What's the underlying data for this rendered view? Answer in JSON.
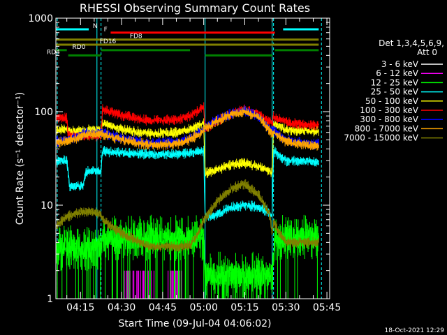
{
  "chart_data": {
    "type": "line",
    "title": "RHESSI Observing Summary Count Rates",
    "xlabel": "Start Time (09-Jul-04 04:06:02)",
    "ylabel": "Count Rate (s⁻¹ detector⁻¹)",
    "yscale": "log",
    "ylim": [
      1,
      1000
    ],
    "xlim_minutes": [
      6,
      106
    ],
    "y_ticks": [
      {
        "value": 1,
        "label": "1"
      },
      {
        "value": 10,
        "label": "10"
      },
      {
        "value": 100,
        "label": "100"
      },
      {
        "value": 1000,
        "label": "1000"
      }
    ],
    "x_ticks": [
      {
        "minute": 15,
        "label": "04:15"
      },
      {
        "minute": 30,
        "label": "04:30"
      },
      {
        "minute": 45,
        "label": "04:45"
      },
      {
        "minute": 60,
        "label": "05:00"
      },
      {
        "minute": 75,
        "label": "05:15"
      },
      {
        "minute": 90,
        "label": "05:30"
      },
      {
        "minute": 105,
        "label": "05:45"
      }
    ],
    "legend": {
      "title_lines": [
        "Det 1,3,4,5,6,9,",
        "Att 0"
      ],
      "placement": "right"
    },
    "series": [
      {
        "name": "3 - 6 keV",
        "color": "#ffffff",
        "visible": false,
        "points": []
      },
      {
        "name": "6 - 12 keV",
        "color": "#ff00ff",
        "style": "spikes",
        "segments": [
          [
            31,
            42
          ],
          [
            47,
            52
          ]
        ],
        "values": [
          1,
          2
        ]
      },
      {
        "name": "12 - 25 keV",
        "color": "#00ff00",
        "style": "noisy",
        "points": [
          [
            6,
            3.5
          ],
          [
            10,
            3.5
          ],
          [
            19,
            3.5
          ],
          [
            22.5,
            3.5
          ],
          [
            23,
            4.5
          ],
          [
            40,
            4.5
          ],
          [
            55,
            4.5
          ],
          [
            60,
            4.5
          ],
          [
            60.5,
            1.8
          ],
          [
            70,
            1.8
          ],
          [
            80,
            1.8
          ],
          [
            85,
            1.8
          ],
          [
            86,
            4.5
          ],
          [
            102,
            4.5
          ]
        ]
      },
      {
        "name": "25 - 50 keV",
        "color": "#00ffff",
        "points": [
          [
            6,
            30
          ],
          [
            10,
            30
          ],
          [
            11,
            16
          ],
          [
            16,
            16
          ],
          [
            17,
            23
          ],
          [
            22.5,
            23
          ],
          [
            23,
            38
          ],
          [
            30,
            36
          ],
          [
            40,
            35
          ],
          [
            50,
            35
          ],
          [
            55,
            36
          ],
          [
            60,
            38
          ],
          [
            60.5,
            7.5
          ],
          [
            65,
            8
          ],
          [
            70,
            9.5
          ],
          [
            75,
            10
          ],
          [
            80,
            9.5
          ],
          [
            84,
            8.5
          ],
          [
            85,
            7.5
          ],
          [
            85.5,
            38
          ],
          [
            90,
            30
          ],
          [
            100,
            29
          ],
          [
            102,
            29
          ]
        ]
      },
      {
        "name": "50 - 100 keV",
        "color": "#ffff00",
        "points": [
          [
            6,
            64
          ],
          [
            10,
            65
          ],
          [
            11,
            62
          ],
          [
            16,
            62
          ],
          [
            17,
            64
          ],
          [
            22.5,
            64
          ],
          [
            23,
            75
          ],
          [
            30,
            65
          ],
          [
            40,
            58
          ],
          [
            50,
            60
          ],
          [
            55,
            65
          ],
          [
            60,
            75
          ],
          [
            60.5,
            22
          ],
          [
            65,
            24
          ],
          [
            70,
            27
          ],
          [
            75,
            28
          ],
          [
            80,
            26
          ],
          [
            84,
            23
          ],
          [
            85,
            22
          ],
          [
            85.5,
            75
          ],
          [
            90,
            64
          ],
          [
            100,
            62
          ],
          [
            102,
            62
          ]
        ]
      },
      {
        "name": "100 - 300 keV",
        "color": "#ff0000",
        "points": [
          [
            6,
            85
          ],
          [
            8,
            87
          ],
          [
            10,
            85
          ],
          [
            10.5,
            55
          ],
          [
            16,
            55
          ],
          [
            22.5,
            55
          ],
          [
            23,
            105
          ],
          [
            30,
            92
          ],
          [
            40,
            80
          ],
          [
            50,
            82
          ],
          [
            55,
            90
          ],
          [
            60,
            112
          ],
          [
            60.5,
            65
          ],
          [
            65,
            80
          ],
          [
            70,
            95
          ],
          [
            75,
            105
          ],
          [
            80,
            95
          ],
          [
            85,
            75
          ],
          [
            85.5,
            88
          ],
          [
            88,
            82
          ],
          [
            92,
            75
          ],
          [
            100,
            72
          ],
          [
            102,
            72
          ]
        ]
      },
      {
        "name": "300 - 800 keV",
        "color": "#0000ff",
        "points": [
          [
            6,
            48
          ],
          [
            10,
            50
          ],
          [
            10.5,
            50
          ],
          [
            16,
            58
          ],
          [
            22.5,
            60
          ],
          [
            23,
            60
          ],
          [
            30,
            52
          ],
          [
            40,
            46
          ],
          [
            50,
            47
          ],
          [
            55,
            52
          ],
          [
            60,
            65
          ],
          [
            60.5,
            70
          ],
          [
            65,
            82
          ],
          [
            70,
            95
          ],
          [
            75,
            102
          ],
          [
            80,
            90
          ],
          [
            85,
            60
          ],
          [
            85.5,
            62
          ],
          [
            90,
            50
          ],
          [
            100,
            45
          ],
          [
            102,
            45
          ]
        ]
      },
      {
        "name": "800 - 7000 keV",
        "color": "#ffa500",
        "points": [
          [
            6,
            47
          ],
          [
            10,
            48
          ],
          [
            10.5,
            48
          ],
          [
            16,
            56
          ],
          [
            22.5,
            58
          ],
          [
            23,
            57
          ],
          [
            30,
            50
          ],
          [
            40,
            44
          ],
          [
            50,
            45
          ],
          [
            55,
            50
          ],
          [
            60,
            62
          ],
          [
            60.5,
            66
          ],
          [
            65,
            80
          ],
          [
            70,
            93
          ],
          [
            75,
            100
          ],
          [
            80,
            88
          ],
          [
            85,
            58
          ],
          [
            85.5,
            60
          ],
          [
            90,
            48
          ],
          [
            100,
            43
          ],
          [
            102,
            43
          ]
        ]
      },
      {
        "name": "7000 - 15000 keV",
        "color": "#808000",
        "points": [
          [
            6,
            6
          ],
          [
            10,
            7.5
          ],
          [
            15,
            8.5
          ],
          [
            20,
            8.5
          ],
          [
            22.5,
            8
          ],
          [
            23,
            7
          ],
          [
            30,
            5
          ],
          [
            40,
            3.6
          ],
          [
            50,
            3.6
          ],
          [
            55,
            3.7
          ],
          [
            58,
            5
          ],
          [
            60,
            7
          ],
          [
            65,
            11
          ],
          [
            70,
            15
          ],
          [
            75,
            17
          ],
          [
            80,
            13
          ],
          [
            84,
            8
          ],
          [
            85,
            5
          ],
          [
            85.5,
            6.5
          ],
          [
            90,
            4
          ],
          [
            95,
            4
          ],
          [
            100,
            4
          ],
          [
            102,
            4
          ]
        ]
      }
    ],
    "segments": [
      {
        "label": "N",
        "color": "#00ffff",
        "rows": "top",
        "spans": [
          [
            6,
            18
          ]
        ],
        "y": 760
      },
      {
        "label": "",
        "color": "#00ffff",
        "spans": [
          [
            89,
            102
          ]
        ],
        "y": 760
      },
      {
        "label": "F",
        "color": "#ff0000",
        "spans": [
          [
            26,
            86
          ]
        ],
        "y": 700
      },
      {
        "label": "FD8",
        "color": "#808000",
        "spans": [
          [
            6,
            102
          ]
        ],
        "y": 590
      },
      {
        "label": "FD16",
        "color": "#808000",
        "spans": [
          [
            6,
            102
          ]
        ],
        "y": 520
      },
      {
        "label": "RD0",
        "color": "#008000",
        "spans": [
          [
            6,
            10
          ],
          [
            22.5,
            55
          ],
          [
            86,
            102
          ]
        ],
        "y": 455
      },
      {
        "label": "RD4",
        "color": "#008000",
        "spans": [
          [
            10.5,
            22.5
          ],
          [
            60.5,
            85
          ]
        ],
        "y": 400
      }
    ],
    "cyan_dashed_verticals": [
      6.5,
      22.5,
      85.5,
      103
    ],
    "cyan_solid_verticals": [
      6,
      21,
      60.5,
      85
    ]
  },
  "footer": {
    "date_stamp": "18-Oct-2021 12:29"
  }
}
